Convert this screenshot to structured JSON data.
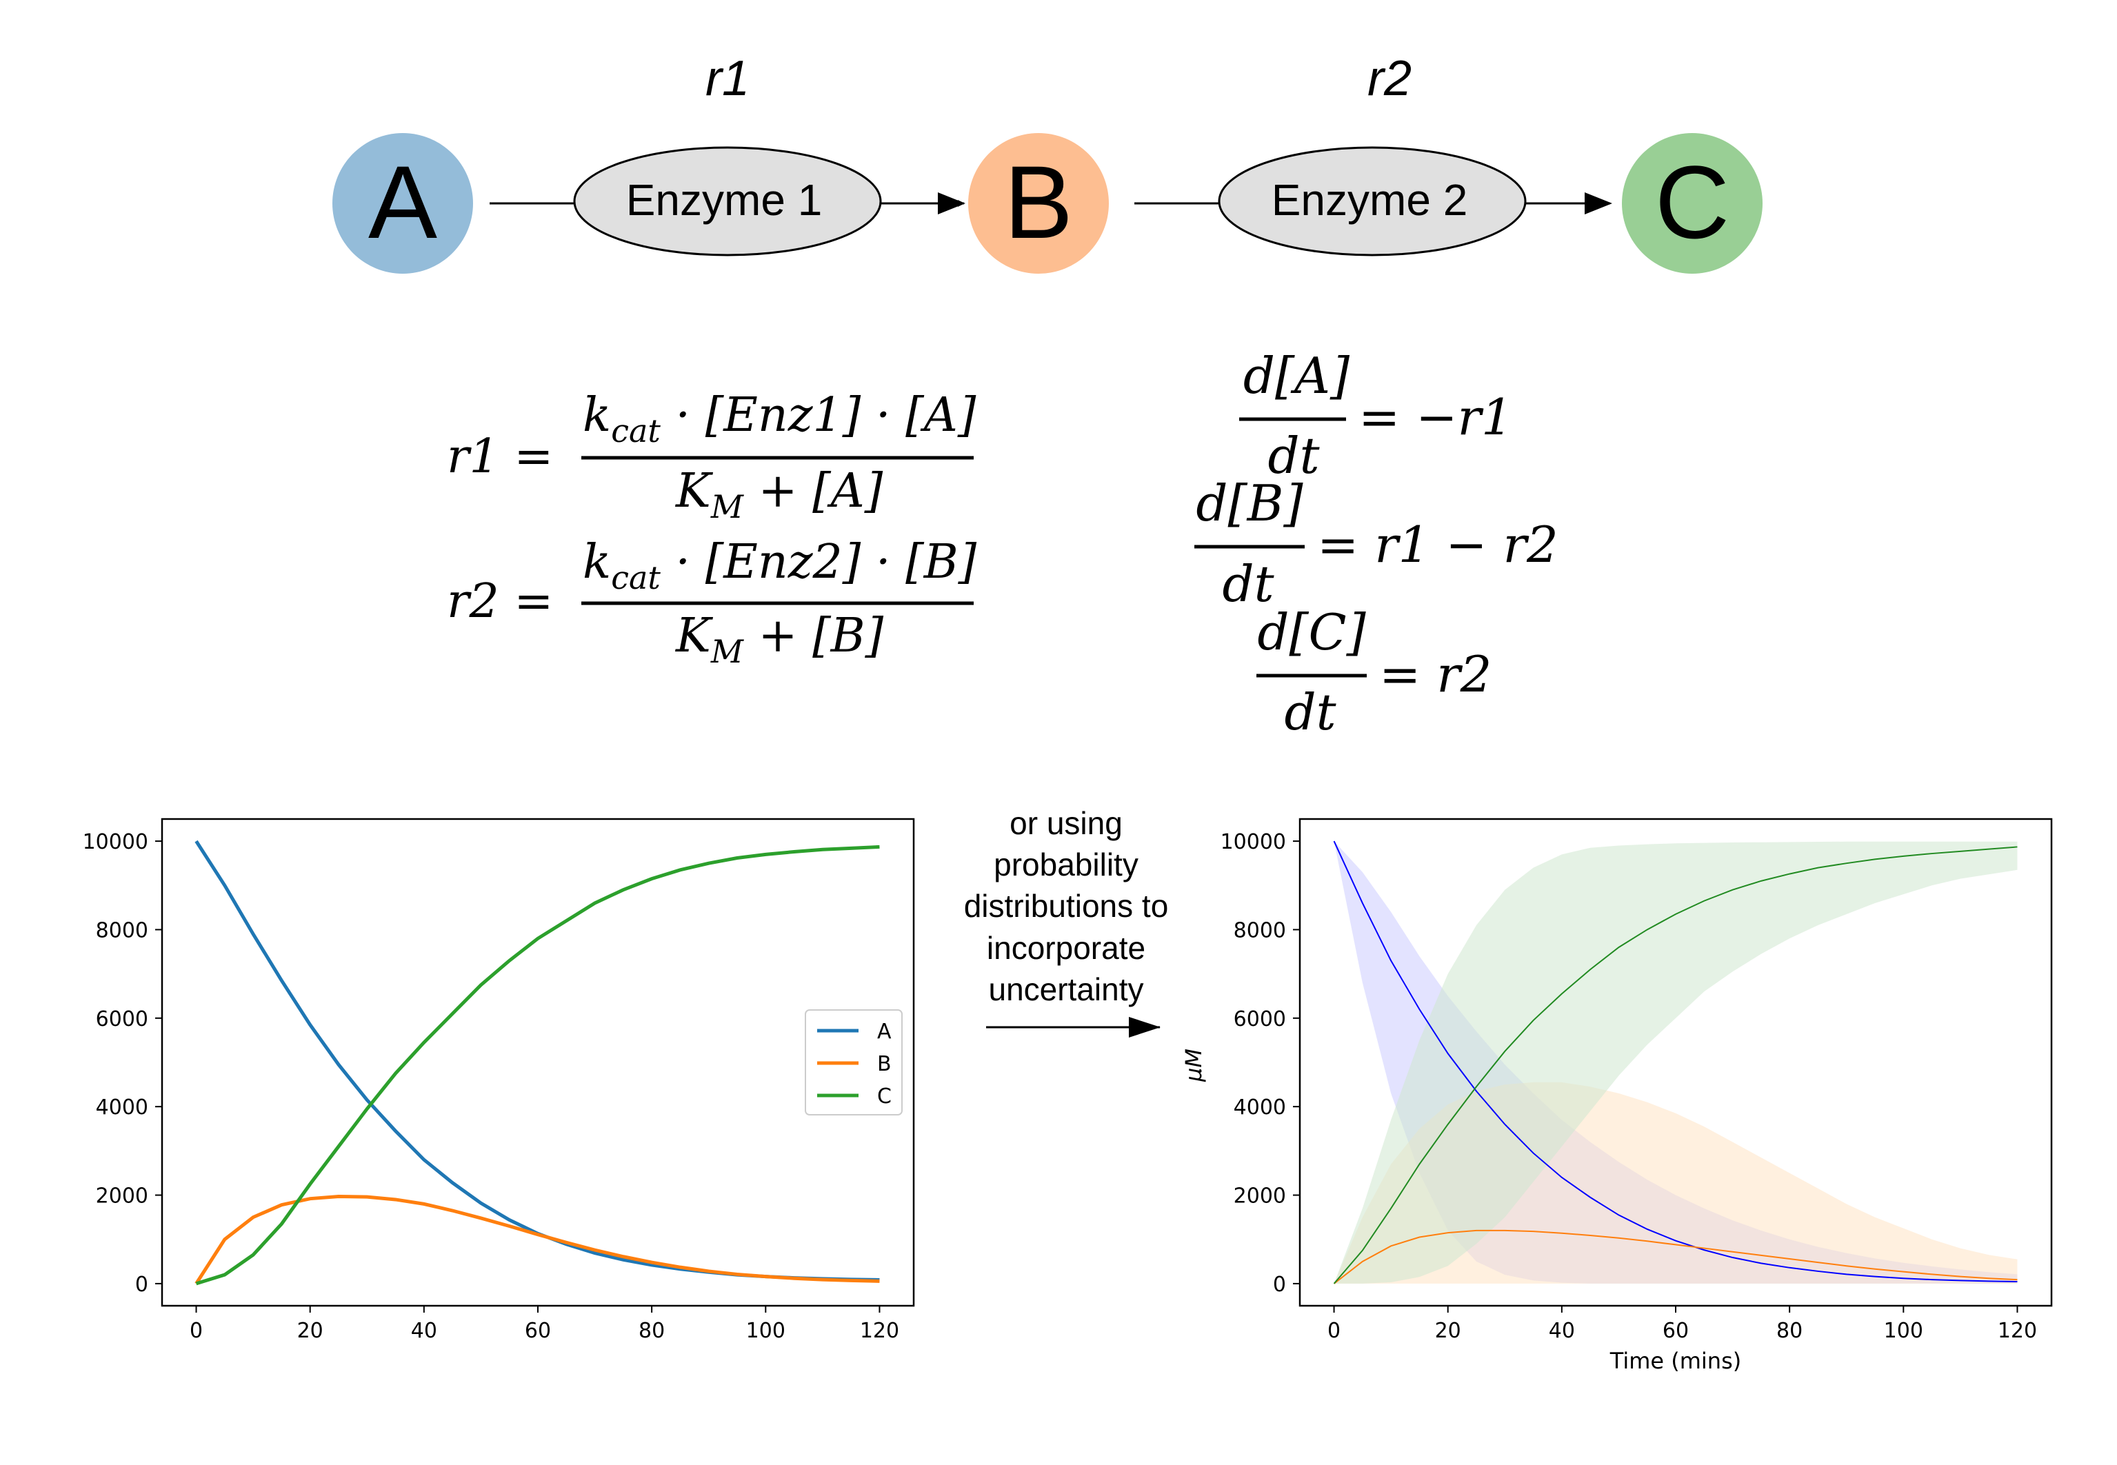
{
  "pathway": {
    "nodes": [
      {
        "label": "A",
        "color": "#94bcd9"
      },
      {
        "label": "B",
        "color": "#fdbe91"
      },
      {
        "label": "C",
        "color": "#99cf95"
      }
    ],
    "reactions": [
      {
        "name": "r1",
        "enzyme": "Enzyme 1"
      },
      {
        "name": "r2",
        "enzyme": "Enzyme 2"
      }
    ],
    "enzyme_fill": "#e0e0e0"
  },
  "equations": {
    "r1": {
      "lhs": "r1 =",
      "num_k": "k",
      "num_sub": "cat",
      "num_rest": " · [Enz1] · [A]",
      "den_k": "K",
      "den_sub": "M",
      "den_rest": " + [A]"
    },
    "r2": {
      "lhs": "r2 =",
      "num_k": "k",
      "num_sub": "cat",
      "num_rest": " · [Enz2] · [B]",
      "den_k": "K",
      "den_sub": "M",
      "den_rest": " + [B]"
    },
    "odes": [
      {
        "num": "d[A]",
        "den": "dt",
        "rhs": "= −r1"
      },
      {
        "num": "d[B]",
        "den": "dt",
        "rhs": "= r1 − r2"
      },
      {
        "num": "d[C]",
        "den": "dt",
        "rhs": "= r2"
      }
    ]
  },
  "annotation": {
    "lines": [
      "or using",
      "probability",
      "distributions to",
      "incorporate",
      "uncertainty"
    ]
  },
  "chart_data": [
    {
      "type": "line",
      "xlim": [
        -6,
        126
      ],
      "ylim": [
        -500,
        10500
      ],
      "xticks": [
        0,
        20,
        40,
        60,
        80,
        100,
        120
      ],
      "yticks": [
        0,
        2000,
        4000,
        6000,
        8000,
        10000
      ],
      "legend": "right",
      "series": [
        {
          "name": "A",
          "color": "#1f77b4",
          "x": [
            0,
            5,
            10,
            15,
            20,
            25,
            30,
            35,
            40,
            45,
            50,
            55,
            60,
            65,
            70,
            75,
            80,
            85,
            90,
            95,
            100,
            105,
            110,
            115,
            120
          ],
          "y": [
            10000,
            9000,
            7900,
            6850,
            5850,
            4950,
            4150,
            3450,
            2800,
            2280,
            1820,
            1440,
            1130,
            890,
            690,
            540,
            420,
            330,
            260,
            200,
            160,
            130,
            110,
            95,
            85
          ]
        },
        {
          "name": "B",
          "color": "#ff7f0e",
          "x": [
            0,
            5,
            10,
            15,
            20,
            25,
            30,
            35,
            40,
            45,
            50,
            55,
            60,
            65,
            70,
            75,
            80,
            85,
            90,
            95,
            100,
            105,
            110,
            115,
            120
          ],
          "y": [
            0,
            1000,
            1500,
            1780,
            1920,
            1970,
            1960,
            1900,
            1800,
            1650,
            1480,
            1300,
            1110,
            930,
            760,
            610,
            480,
            370,
            280,
            210,
            160,
            120,
            90,
            70,
            55
          ]
        },
        {
          "name": "C",
          "color": "#2ca02c",
          "x": [
            0,
            5,
            10,
            15,
            20,
            25,
            30,
            35,
            40,
            45,
            50,
            55,
            60,
            65,
            70,
            75,
            80,
            85,
            90,
            95,
            100,
            105,
            110,
            115,
            120
          ],
          "y": [
            0,
            200,
            650,
            1350,
            2250,
            3100,
            3950,
            4750,
            5450,
            6100,
            6750,
            7300,
            7800,
            8200,
            8600,
            8900,
            9150,
            9350,
            9500,
            9620,
            9700,
            9760,
            9810,
            9840,
            9870
          ]
        }
      ]
    },
    {
      "type": "area",
      "xlabel": "Time (mins)",
      "ylabel": "μM",
      "xlim": [
        -6,
        126
      ],
      "ylim": [
        -500,
        10500
      ],
      "xticks": [
        0,
        20,
        40,
        60,
        80,
        100,
        120
      ],
      "yticks": [
        0,
        2000,
        4000,
        6000,
        8000,
        10000
      ],
      "series": [
        {
          "color": "#0000ff",
          "band_color": "#ccccff",
          "x": [
            0,
            5,
            10,
            15,
            20,
            25,
            30,
            35,
            40,
            45,
            50,
            55,
            60,
            65,
            70,
            75,
            80,
            85,
            90,
            95,
            100,
            105,
            110,
            115,
            120
          ],
          "y": [
            10000,
            8600,
            7300,
            6200,
            5200,
            4350,
            3600,
            2950,
            2400,
            1950,
            1550,
            1230,
            970,
            760,
            590,
            460,
            360,
            280,
            210,
            160,
            120,
            90,
            70,
            55,
            45
          ],
          "upper": [
            10000,
            9300,
            8400,
            7400,
            6500,
            5700,
            4950,
            4300,
            3700,
            3200,
            2750,
            2350,
            2000,
            1700,
            1430,
            1200,
            1000,
            830,
            690,
            570,
            470,
            390,
            320,
            260,
            210
          ],
          "lower": [
            10000,
            6800,
            4300,
            2500,
            1200,
            500,
            200,
            70,
            20,
            0,
            0,
            0,
            0,
            0,
            0,
            0,
            0,
            0,
            0,
            0,
            0,
            0,
            0,
            0,
            0
          ]
        },
        {
          "color": "#ff7f0e",
          "band_color": "#ffe4c4",
          "x": [
            0,
            5,
            10,
            15,
            20,
            25,
            30,
            35,
            40,
            45,
            50,
            55,
            60,
            65,
            70,
            75,
            80,
            85,
            90,
            95,
            100,
            105,
            110,
            115,
            120
          ],
          "y": [
            0,
            500,
            850,
            1050,
            1150,
            1200,
            1200,
            1180,
            1140,
            1090,
            1030,
            960,
            880,
            800,
            720,
            640,
            560,
            480,
            400,
            330,
            270,
            210,
            160,
            120,
            90
          ],
          "upper": [
            0,
            1500,
            2700,
            3500,
            4050,
            4350,
            4500,
            4550,
            4550,
            4450,
            4300,
            4100,
            3850,
            3550,
            3200,
            2850,
            2500,
            2150,
            1800,
            1500,
            1250,
            1000,
            800,
            650,
            550
          ],
          "lower": [
            0,
            0,
            0,
            0,
            0,
            0,
            0,
            0,
            0,
            0,
            0,
            0,
            0,
            0,
            0,
            0,
            0,
            0,
            0,
            0,
            0,
            0,
            0,
            0,
            0
          ]
        },
        {
          "color": "#228b22",
          "band_color": "#cfe8cf",
          "x": [
            0,
            5,
            10,
            15,
            20,
            25,
            30,
            35,
            40,
            45,
            50,
            55,
            60,
            65,
            70,
            75,
            80,
            85,
            90,
            95,
            100,
            105,
            110,
            115,
            120
          ],
          "y": [
            0,
            750,
            1700,
            2700,
            3600,
            4450,
            5250,
            5950,
            6550,
            7100,
            7600,
            8000,
            8350,
            8650,
            8900,
            9100,
            9260,
            9400,
            9500,
            9590,
            9660,
            9720,
            9770,
            9820,
            9870
          ],
          "upper": [
            0,
            1700,
            3700,
            5500,
            7000,
            8100,
            8900,
            9400,
            9700,
            9850,
            9900,
            9930,
            9950,
            9960,
            9970,
            9975,
            9980,
            9985,
            9990,
            9990,
            9990,
            9990,
            9990,
            9990,
            9990
          ],
          "lower": [
            0,
            0,
            30,
            150,
            400,
            900,
            1500,
            2300,
            3100,
            3900,
            4700,
            5400,
            6000,
            6600,
            7050,
            7450,
            7800,
            8100,
            8350,
            8600,
            8800,
            9000,
            9150,
            9250,
            9350
          ]
        }
      ]
    }
  ]
}
